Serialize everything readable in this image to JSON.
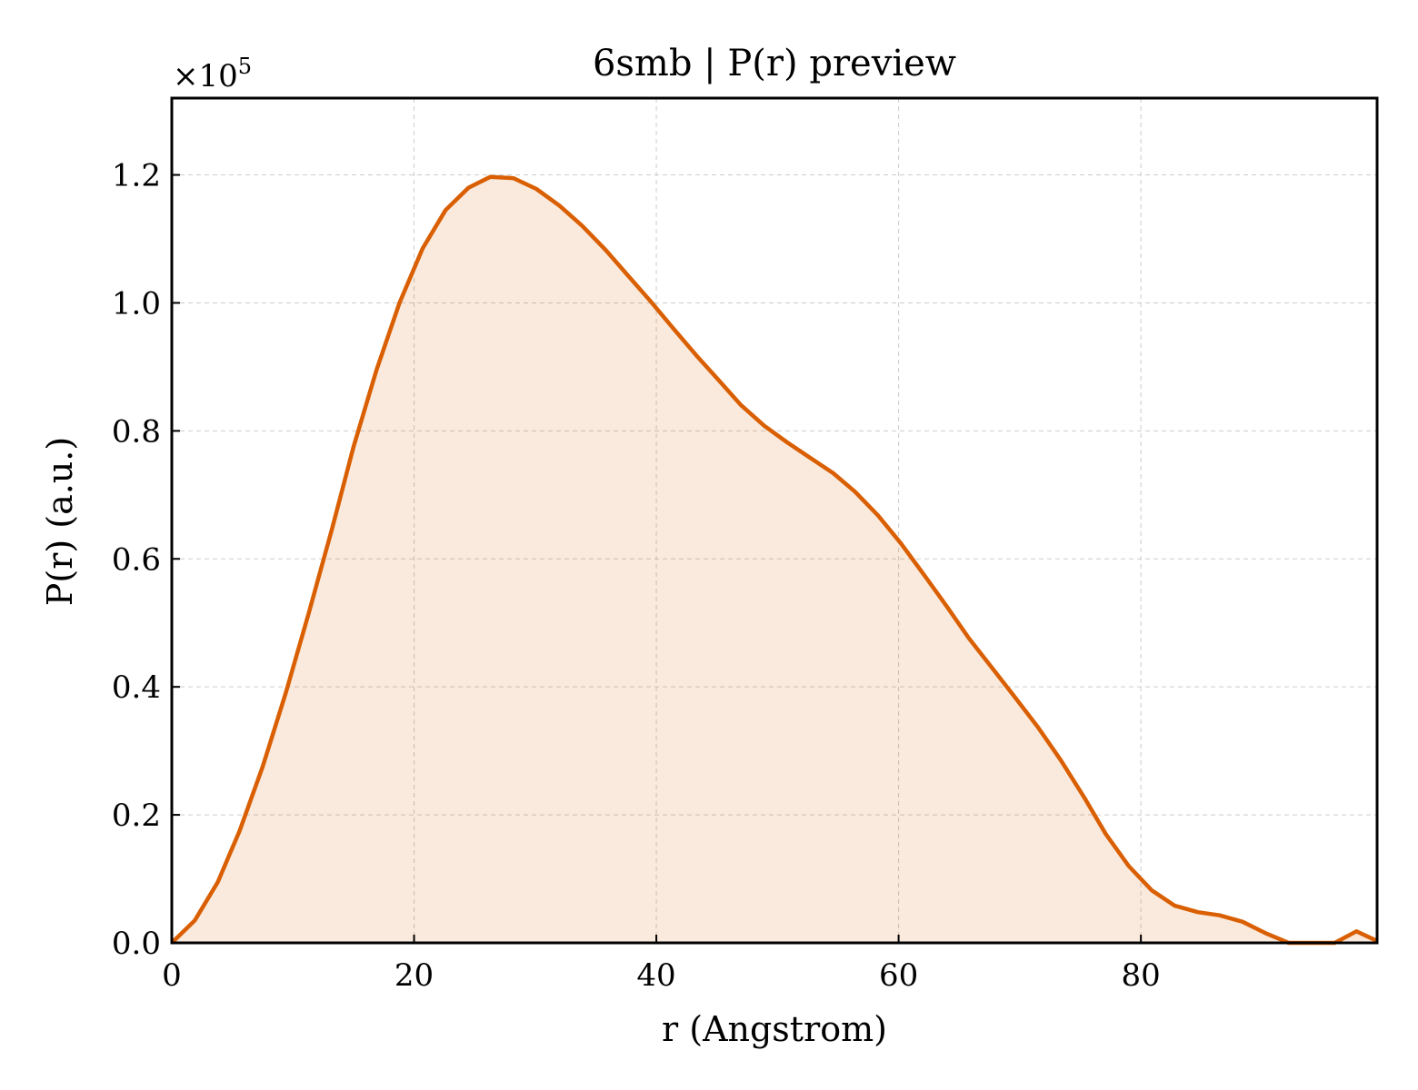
{
  "chart_data": {
    "type": "area",
    "title": "6smb | P(r) preview",
    "xlabel": "r (Angstrom)",
    "ylabel": "P(r) (a.u.)",
    "y_multiplier_label": "×10",
    "y_multiplier_exponent": "5",
    "xlim": [
      0,
      99.5
    ],
    "ylim": [
      0,
      1.32
    ],
    "x_ticks": [
      0,
      20,
      40,
      60,
      80
    ],
    "x_tick_labels": [
      "0",
      "20",
      "40",
      "60",
      "80"
    ],
    "y_ticks": [
      0,
      0.2,
      0.4,
      0.6,
      0.8,
      1.0,
      1.2
    ],
    "y_tick_labels": [
      "0.0",
      "0.2",
      "0.4",
      "0.6",
      "0.8",
      "1.0",
      "1.2"
    ],
    "grid": true,
    "colors": {
      "line": "#d95f02",
      "fill": "#d95f02",
      "grid": "#cccccc",
      "axes": "#000000"
    },
    "series": [
      {
        "x": [
          0,
          1.9,
          3.8,
          5.6,
          7.5,
          9.4,
          11.3,
          13.2,
          15.0,
          16.9,
          18.8,
          20.7,
          22.6,
          24.5,
          26.3,
          28.2,
          30.1,
          32.0,
          33.9,
          35.8,
          37.6,
          39.5,
          41.4,
          43.3,
          45.2,
          47.0,
          48.9,
          50.8,
          52.7,
          54.6,
          56.4,
          58.3,
          60.2,
          62.1,
          64.0,
          65.8,
          67.7,
          69.6,
          71.5,
          73.4,
          75.3,
          77.1,
          79.0,
          80.9,
          82.8,
          84.7,
          86.5,
          88.4,
          90.3,
          92.2,
          94.1,
          96.0,
          97.8,
          99.5
        ],
        "y": [
          0.0,
          0.035,
          0.095,
          0.175,
          0.275,
          0.39,
          0.515,
          0.645,
          0.775,
          0.895,
          1.0,
          1.085,
          1.145,
          1.18,
          1.197,
          1.195,
          1.178,
          1.152,
          1.12,
          1.083,
          1.044,
          1.003,
          0.96,
          0.918,
          0.878,
          0.84,
          0.808,
          0.782,
          0.758,
          0.734,
          0.705,
          0.668,
          0.624,
          0.575,
          0.525,
          0.476,
          0.43,
          0.384,
          0.337,
          0.285,
          0.228,
          0.17,
          0.12,
          0.082,
          0.058,
          0.048,
          0.043,
          0.033,
          0.015,
          -0.003,
          -0.005,
          -0.004,
          0.018,
          0.003
        ]
      }
    ]
  }
}
